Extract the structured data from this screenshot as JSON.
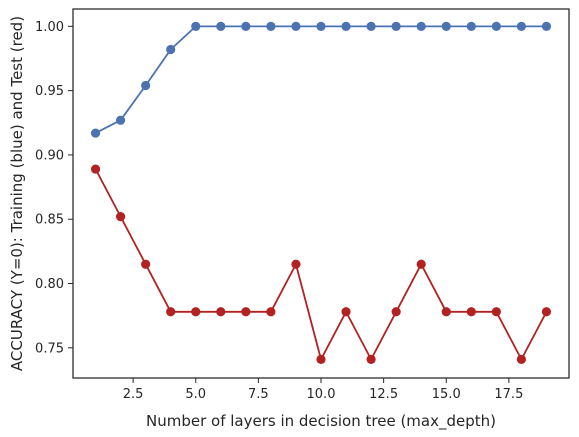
{
  "chart_data": {
    "type": "line",
    "title": "",
    "xlabel": "Number of layers in decision tree (max_depth)",
    "ylabel": "ACCURACY (Y=0): Training (blue) and Test (red)",
    "xlim": [
      0.1,
      19.9
    ],
    "ylim": [
      0.7265,
      1.0135
    ],
    "grid": false,
    "legend": "none",
    "x_ticks": [
      2.5,
      5.0,
      7.5,
      10.0,
      12.5,
      15.0,
      17.5
    ],
    "x_tick_labels": [
      "2.5",
      "5.0",
      "7.5",
      "10.0",
      "12.5",
      "15.0",
      "17.5"
    ],
    "y_ticks": [
      0.75,
      0.8,
      0.85,
      0.9,
      0.95,
      1.0
    ],
    "y_tick_labels": [
      "0.75",
      "0.80",
      "0.85",
      "0.90",
      "0.95",
      "1.00"
    ],
    "x": [
      1,
      2,
      3,
      4,
      5,
      6,
      7,
      8,
      9,
      10,
      11,
      12,
      13,
      14,
      15,
      16,
      17,
      18,
      19
    ],
    "series": [
      {
        "color": "#4c72b0",
        "values": [
          0.917,
          0.927,
          0.954,
          0.982,
          1.0,
          1.0,
          1.0,
          1.0,
          1.0,
          1.0,
          1.0,
          1.0,
          1.0,
          1.0,
          1.0,
          1.0,
          1.0,
          1.0,
          1.0
        ]
      },
      {
        "color": "#b22222",
        "values": [
          0.889,
          0.852,
          0.815,
          0.778,
          0.778,
          0.778,
          0.778,
          0.778,
          0.815,
          0.741,
          0.778,
          0.741,
          0.778,
          0.815,
          0.778,
          0.778,
          0.778,
          0.741,
          0.778
        ]
      }
    ]
  }
}
